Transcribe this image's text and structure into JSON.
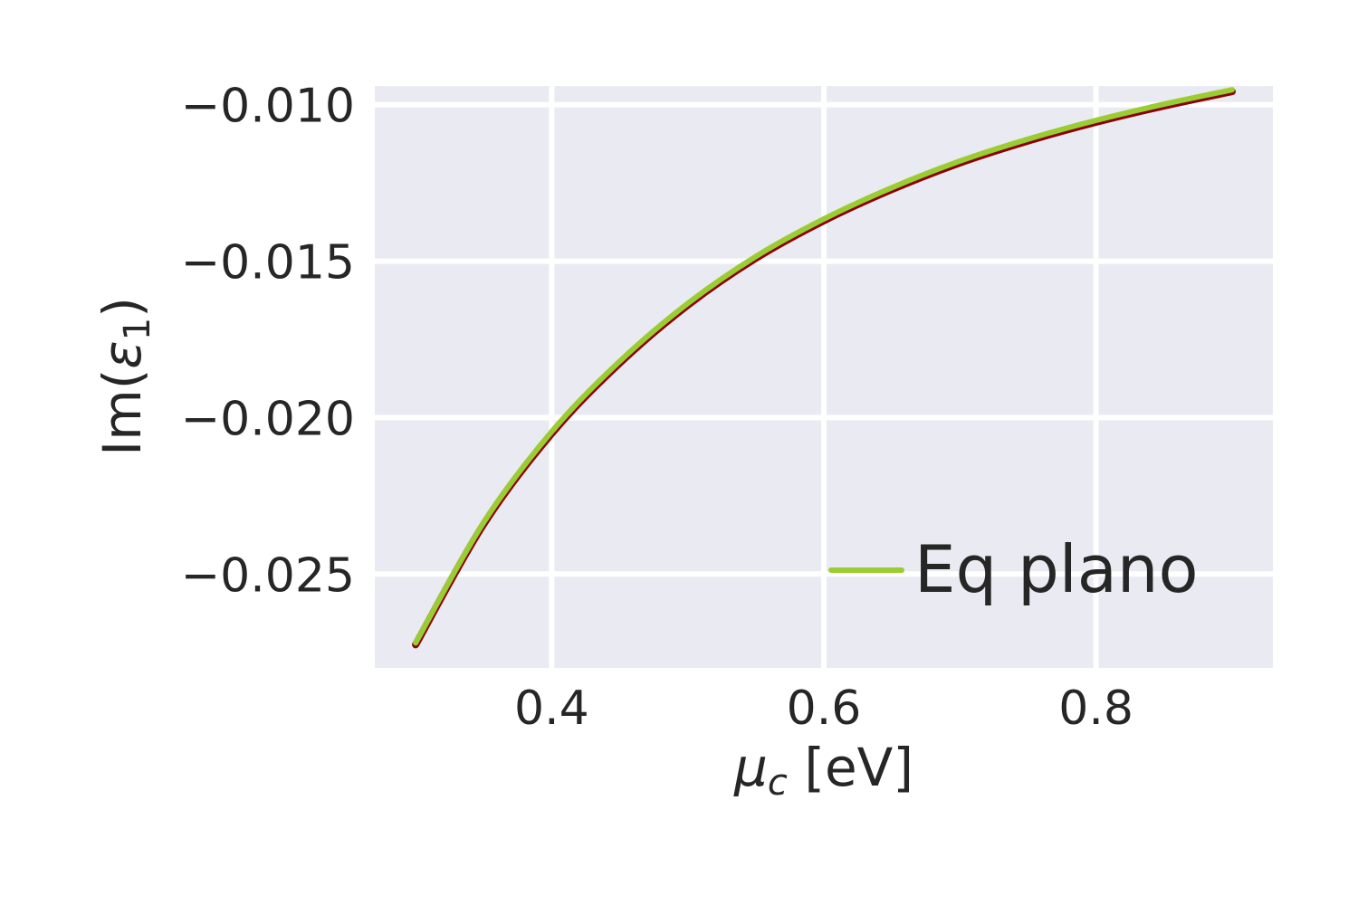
{
  "chart_data": {
    "type": "line",
    "xlabel_symbol": "μ",
    "xlabel_sub": "c",
    "xlabel_unit": " [eV]",
    "ylabel_prefix": "Im(",
    "ylabel_symbol": "ε",
    "ylabel_sub": "1",
    "ylabel_suffix": ")",
    "xlim": [
      0.27,
      0.93
    ],
    "ylim": [
      -0.028,
      -0.0094
    ],
    "xticks": [
      {
        "value": 0.4,
        "label": "0.4"
      },
      {
        "value": 0.6,
        "label": "0.6"
      },
      {
        "value": 0.8,
        "label": "0.8"
      }
    ],
    "yticks": [
      {
        "value": -0.01,
        "label": "−0.010"
      },
      {
        "value": -0.015,
        "label": "−0.015"
      },
      {
        "value": -0.02,
        "label": "−0.020"
      },
      {
        "value": -0.025,
        "label": "−0.025"
      }
    ],
    "grid": true,
    "background": "#eaeaf2",
    "legend_placement": "lower-right",
    "series": [
      {
        "name": "",
        "color": "#8b0000",
        "x": [
          0.3,
          0.35,
          0.4,
          0.45,
          0.5,
          0.55,
          0.6,
          0.65,
          0.7,
          0.75,
          0.8,
          0.85,
          0.9
        ],
        "y": [
          -0.0272,
          -0.02335,
          -0.02045,
          -0.0182,
          -0.01635,
          -0.01485,
          -0.01365,
          -0.01265,
          -0.0118,
          -0.0111,
          -0.0105,
          -0.00998,
          -0.00952
        ]
      },
      {
        "name": "Eq plano",
        "color": "#9acd32",
        "x": [
          0.3,
          0.35,
          0.4,
          0.45,
          0.5,
          0.55,
          0.6,
          0.65,
          0.7,
          0.75,
          0.8,
          0.85,
          0.9
        ],
        "y": [
          -0.0272,
          -0.02335,
          -0.02045,
          -0.0182,
          -0.01635,
          -0.01485,
          -0.01365,
          -0.01265,
          -0.0118,
          -0.0111,
          -0.0105,
          -0.00998,
          -0.00952
        ]
      }
    ]
  }
}
